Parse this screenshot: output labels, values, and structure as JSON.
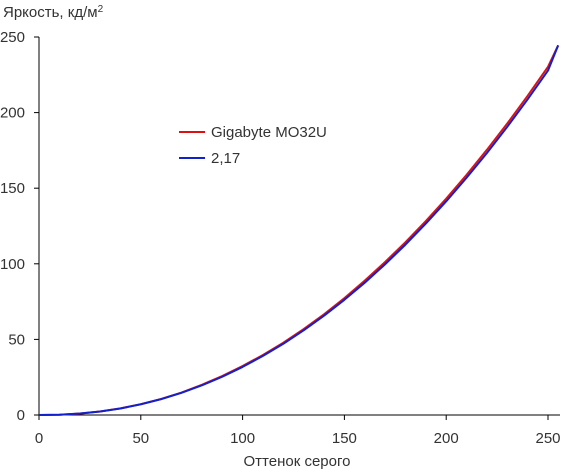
{
  "chart_data": {
    "type": "line",
    "title": "",
    "ylabel": "Яркость, кд/м",
    "ylabel_superscript": "2",
    "xlabel": "Оттенок серого",
    "xlim": [
      0,
      255
    ],
    "ylim": [
      0,
      250
    ],
    "xticks": [
      0,
      50,
      100,
      150,
      200,
      250
    ],
    "yticks": [
      0,
      50,
      100,
      150,
      200,
      250
    ],
    "xtick_labels": [
      "0",
      "50",
      "100",
      "150",
      "200",
      "250"
    ],
    "ytick_labels": [
      "0",
      "50",
      "100",
      "150",
      "200",
      "250"
    ],
    "grid": false,
    "legend_position": "upper-left-center",
    "series": [
      {
        "name": "Gigabyte MO32U",
        "color": "#dd1111",
        "x": [
          0,
          10,
          20,
          30,
          40,
          50,
          60,
          70,
          80,
          90,
          100,
          110,
          120,
          130,
          140,
          150,
          160,
          170,
          180,
          190,
          200,
          210,
          220,
          230,
          240,
          250,
          255
        ],
        "y": [
          0,
          0.2,
          0.9,
          2.3,
          4.4,
          7.1,
          10.6,
          14.8,
          20.0,
          25.8,
          32.4,
          39.7,
          47.8,
          56.8,
          66.6,
          77.3,
          88.9,
          101.2,
          114.3,
          128.3,
          143.1,
          158.8,
          175.4,
          192.8,
          211.1,
          230.3,
          244.5
        ]
      },
      {
        "name": "2,17",
        "color": "#1122cc",
        "x": [
          0,
          10,
          20,
          30,
          40,
          50,
          60,
          70,
          80,
          90,
          100,
          110,
          120,
          130,
          140,
          150,
          160,
          170,
          180,
          190,
          200,
          210,
          220,
          230,
          240,
          250,
          255
        ],
        "y": [
          0,
          0.2,
          1.0,
          2.3,
          4.3,
          7.1,
          10.5,
          14.7,
          19.6,
          25.3,
          31.8,
          39.1,
          47.1,
          56.0,
          65.7,
          76.2,
          87.5,
          99.7,
          112.7,
          126.6,
          141.3,
          156.9,
          173.3,
          190.6,
          208.8,
          227.8,
          244.5
        ]
      }
    ]
  }
}
